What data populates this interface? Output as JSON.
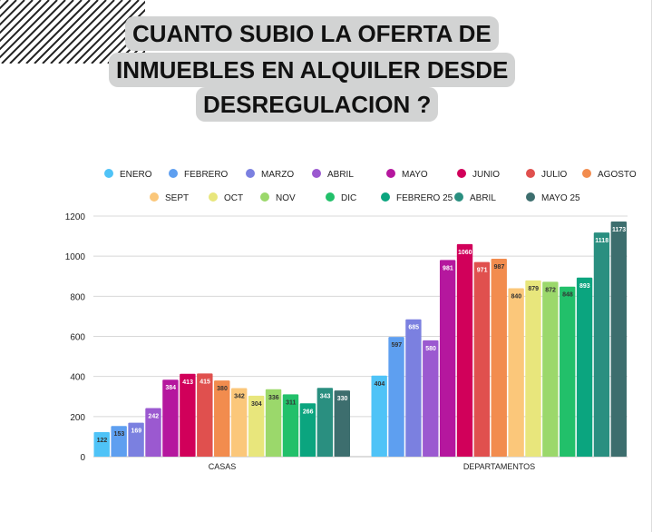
{
  "title_lines": [
    "CUANTO SUBIO LA OFERTA DE",
    "INMUEBLES EN ALQUILER DESDE",
    "DESREGULACION ?"
  ],
  "chart_data": {
    "type": "bar",
    "title": "CUANTO SUBIO LA OFERTA DE INMUEBLES EN ALQUILER DESDE DESREGULACION ?",
    "categories": [
      "CASAS",
      "DEPARTAMENTOS"
    ],
    "ylim": [
      0,
      1200
    ],
    "yticks": [
      0,
      200,
      400,
      600,
      800,
      1000,
      1200
    ],
    "grid": true,
    "legend_position": "top",
    "series": [
      {
        "name": "ENERO",
        "color": "#4fc3f7",
        "values": [
          122,
          404
        ]
      },
      {
        "name": "FEBRERO",
        "color": "#5e9ff0",
        "values": [
          153,
          597
        ]
      },
      {
        "name": "MARZO",
        "color": "#7b80e0",
        "values": [
          169,
          685
        ]
      },
      {
        "name": "ABRIL",
        "color": "#9b59d0",
        "values": [
          242,
          580
        ]
      },
      {
        "name": "MAYO",
        "color": "#b5179e",
        "values": [
          384,
          981
        ]
      },
      {
        "name": "JUNIO",
        "color": "#d1005a",
        "values": [
          413,
          1060
        ]
      },
      {
        "name": "JULIO",
        "color": "#e0504e",
        "values": [
          415,
          971
        ]
      },
      {
        "name": "AGOSTO",
        "color": "#f28c4e",
        "values": [
          380,
          987
        ]
      },
      {
        "name": "SEPT",
        "color": "#fbc77a",
        "values": [
          342,
          840
        ]
      },
      {
        "name": "OCT",
        "color": "#e8e67c",
        "values": [
          304,
          879
        ]
      },
      {
        "name": "NOV",
        "color": "#9bd86b",
        "values": [
          336,
          872
        ]
      },
      {
        "name": "DIC",
        "color": "#22c06a",
        "values": [
          311,
          848
        ]
      },
      {
        "name": "FEBRERO 25",
        "color": "#0ba57f",
        "values": [
          266,
          893
        ]
      },
      {
        "name": "ABRIL",
        "color": "#2a8f80",
        "values": [
          343,
          1118
        ]
      },
      {
        "name": "MAYO 25",
        "color": "#3d6e6e",
        "values": [
          330,
          1173
        ]
      }
    ]
  }
}
